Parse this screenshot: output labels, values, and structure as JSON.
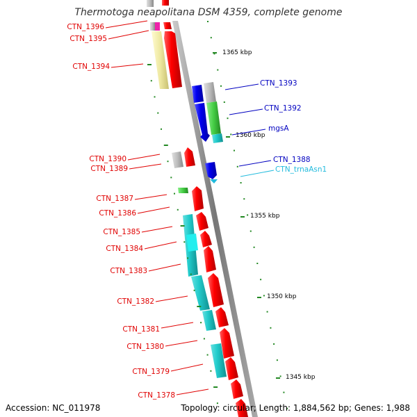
{
  "title": "Thermotoga neapolitana DSM 4359, complete genome",
  "footer": {
    "accession": "Accession: NC_011978",
    "summary": "Topology: circular; Length: 1,884,562 bp; Genes: 1,988"
  },
  "ticks": [
    {
      "label": "1365 kbp"
    },
    {
      "label": "1360 kbp"
    },
    {
      "label": "1355 kbp"
    },
    {
      "label": "1350 kbp"
    },
    {
      "label": "1345 kbp"
    }
  ],
  "genes_left": [
    {
      "label": "CTN_1396",
      "color": "#e00000"
    },
    {
      "label": "CTN_1395",
      "color": "#e00000"
    },
    {
      "label": "CTN_1394",
      "color": "#e00000"
    },
    {
      "label": "CTN_1390",
      "color": "#e00000"
    },
    {
      "label": "CTN_1389",
      "color": "#e00000"
    },
    {
      "label": "CTN_1387",
      "color": "#e00000"
    },
    {
      "label": "CTN_1386",
      "color": "#e00000"
    },
    {
      "label": "CTN_1385",
      "color": "#e00000"
    },
    {
      "label": "CTN_1384",
      "color": "#e00000"
    },
    {
      "label": "CTN_1383",
      "color": "#e00000"
    },
    {
      "label": "CTN_1382",
      "color": "#e00000"
    },
    {
      "label": "CTN_1381",
      "color": "#e00000"
    },
    {
      "label": "CTN_1380",
      "color": "#e00000"
    },
    {
      "label": "CTN_1379",
      "color": "#e00000"
    },
    {
      "label": "CTN_1378",
      "color": "#e00000"
    }
  ],
  "genes_right": [
    {
      "label": "CTN_1393",
      "color": "#0000c0"
    },
    {
      "label": "CTN_1392",
      "color": "#0000c0"
    },
    {
      "label": "mgsA",
      "color": "#0000c0"
    },
    {
      "label": "CTN_1388",
      "color": "#0000c0"
    },
    {
      "label": "CTN_trnaAsn1",
      "color": "#22bbdd"
    }
  ],
  "colors": {
    "forward_cds": "#ff0000",
    "reverse_cds": "#0000ee",
    "cog_gray": "#bbbbbb",
    "cog_yellow": "#eee8a0",
    "cog_cyan": "#22cccc",
    "cog_green": "#44cc44",
    "cog_magenta": "#ee22aa",
    "tick": "#228822",
    "backbone": "#888888"
  }
}
